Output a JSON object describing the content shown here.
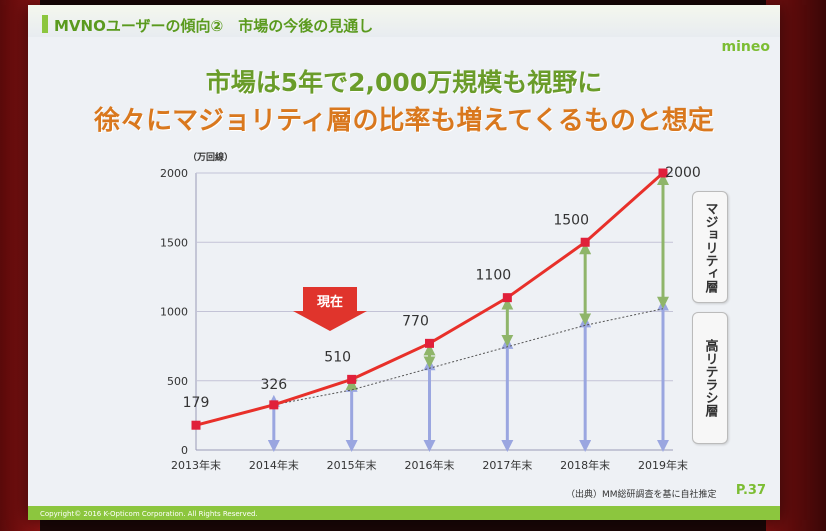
{
  "header": {
    "title": "MVNOユーザーの傾向②　市場の今後の見通し"
  },
  "brand": {
    "name": "mineo"
  },
  "headline": {
    "line1": "市場は5年で2,000万規模も視野に",
    "line2": "徐々にマジョリティ層の比率も増えてくるものと想定"
  },
  "annotation": {
    "now": "現在"
  },
  "legend_boxes": {
    "majority": "マジョリティ層",
    "high_literacy": "高リテラシ層"
  },
  "footer": {
    "source": "（出典）MM総研調査を基に自社推定",
    "page": "P.37",
    "copyright": "Copyright© 2016 K-Opticom Corporation. All Rights Reserved."
  },
  "colors": {
    "line": "#e8302a",
    "marker": "#e0203a",
    "majority_arrow": "#8fb56a",
    "high_arrow": "#9aa6e0",
    "brand_green": "#8cc63e",
    "headline_orange": "#d9781e"
  },
  "chart_data": {
    "type": "line",
    "unit_label": "（万回線）",
    "categories": [
      "2013年末",
      "2014年末",
      "2015年末",
      "2016年末",
      "2017年末",
      "2018年末",
      "2019年末"
    ],
    "values": [
      179,
      326,
      510,
      770,
      1100,
      1500,
      2000
    ],
    "value_labels": [
      "179",
      "326",
      "510",
      "770",
      "1100",
      "1500",
      "2000"
    ],
    "y_ticks": [
      0,
      500,
      1000,
      1500,
      2000
    ],
    "ylim": [
      0,
      2000
    ],
    "grid": true,
    "high_literacy_boundary": [
      179,
      326,
      434,
      590,
      745,
      900,
      1020
    ]
  }
}
